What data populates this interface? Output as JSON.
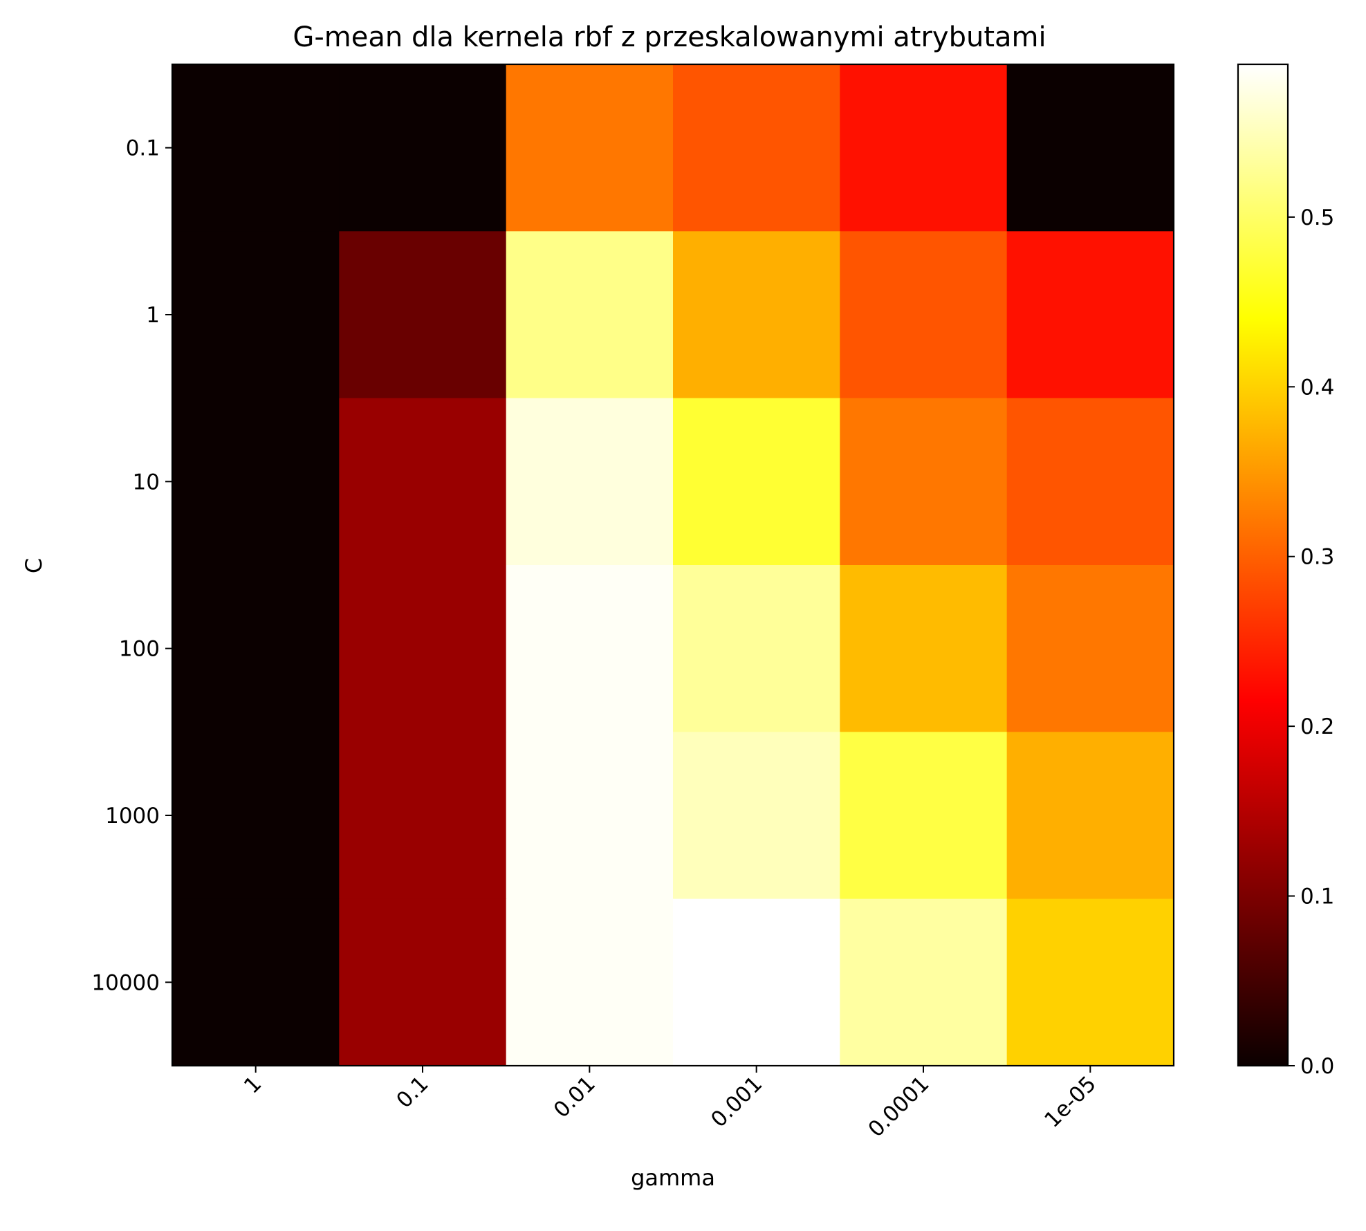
{
  "chart_data": {
    "type": "heatmap",
    "title": "G-mean dla kernela rbf z przeskalowanymi atrybutami",
    "xlabel": "gamma",
    "ylabel": "C",
    "x_categories": [
      "1",
      "0.1",
      "0.01",
      "0.001",
      "0.0001",
      "1e-05"
    ],
    "y_categories": [
      "0.1",
      "1",
      "10",
      "100",
      "1000",
      "10000"
    ],
    "values": [
      [
        0.0,
        0.0,
        0.32,
        0.29,
        0.23,
        0.0
      ],
      [
        0.0,
        0.08,
        0.52,
        0.37,
        0.29,
        0.23
      ],
      [
        0.0,
        0.12,
        0.57,
        0.47,
        0.32,
        0.29
      ],
      [
        0.0,
        0.12,
        0.585,
        0.53,
        0.38,
        0.32
      ],
      [
        0.0,
        0.12,
        0.585,
        0.55,
        0.48,
        0.37
      ],
      [
        0.0,
        0.12,
        0.585,
        0.59,
        0.535,
        0.4
      ]
    ],
    "colormap": "hot",
    "colorbar": {
      "range": [
        0.0,
        0.59
      ],
      "ticks": [
        0.0,
        0.1,
        0.2,
        0.3,
        0.4,
        0.5
      ],
      "tick_labels": [
        "0.0",
        "0.1",
        "0.2",
        "0.3",
        "0.4",
        "0.5"
      ]
    },
    "x_tick_rotation": 45,
    "grid": false
  }
}
